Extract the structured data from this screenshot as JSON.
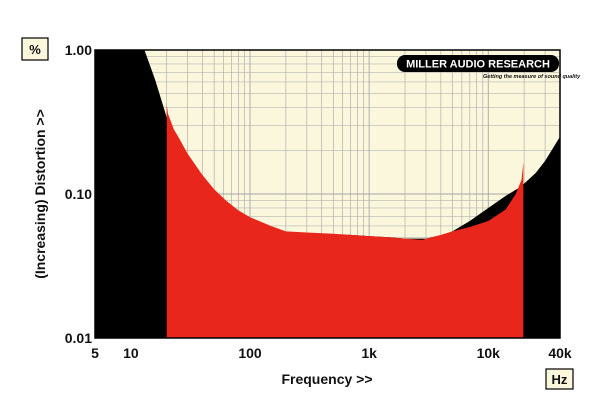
{
  "chart_data": {
    "type": "area",
    "title": "",
    "xlabel": "Frequency >>",
    "ylabel": "(Increasing) Distortion >>",
    "x_scale": "log",
    "y_scale": "log",
    "xlim": [
      5,
      40000
    ],
    "ylim": [
      0.01,
      1.0
    ],
    "x_ticks": [
      {
        "value": 5,
        "label": "5"
      },
      {
        "value": 10,
        "label": "10"
      },
      {
        "value": 100,
        "label": "100"
      },
      {
        "value": 1000,
        "label": "1k"
      },
      {
        "value": 10000,
        "label": "10k"
      },
      {
        "value": 40000,
        "label": "40k"
      }
    ],
    "y_ticks": [
      {
        "value": 1.0,
        "label": "1.00"
      },
      {
        "value": 0.1,
        "label": "0.10"
      },
      {
        "value": 0.01,
        "label": "0.01"
      }
    ],
    "y_unit": "%",
    "x_unit": "Hz",
    "grid": true,
    "colors": {
      "plot_background": "#fbf7dd",
      "grid": "#a6a6a6",
      "noise_floor_fill": "#000000",
      "distortion_fill": "#e8261b"
    },
    "series": [
      {
        "role": "noise-threshold",
        "x": [
          5,
          13,
          16,
          20,
          25,
          32,
          40,
          50,
          63,
          80,
          100,
          150,
          200,
          300,
          500,
          700,
          1000,
          1500,
          2000,
          3000,
          4000,
          5000,
          7000,
          10000,
          14000,
          18000,
          20000,
          25000,
          30000,
          40000
        ],
        "y": [
          1.0,
          1.0,
          0.62,
          0.34,
          0.23,
          0.165,
          0.125,
          0.1,
          0.085,
          0.074,
          0.067,
          0.058,
          0.054,
          0.053,
          0.052,
          0.052,
          0.051,
          0.05,
          0.049,
          0.049,
          0.051,
          0.055,
          0.065,
          0.08,
          0.097,
          0.11,
          0.118,
          0.14,
          0.17,
          0.25
        ]
      },
      {
        "role": "distortion",
        "x": [
          20,
          20.5,
          23,
          25,
          30,
          40,
          50,
          63,
          80,
          100,
          150,
          200,
          300,
          500,
          700,
          1000,
          1500,
          2000,
          2800,
          3000,
          4000,
          5000,
          7000,
          10000,
          14000,
          17000,
          19000,
          19700
        ],
        "y": [
          0.42,
          0.36,
          0.28,
          0.25,
          0.19,
          0.135,
          0.108,
          0.09,
          0.077,
          0.069,
          0.06,
          0.055,
          0.054,
          0.053,
          0.052,
          0.051,
          0.05,
          0.049,
          0.048,
          0.049,
          0.052,
          0.055,
          0.059,
          0.065,
          0.078,
          0.1,
          0.125,
          0.165
        ]
      }
    ]
  },
  "legend_tags": {
    "unit_y": "%",
    "unit_x": "Hz"
  },
  "logo": {
    "name": "MILLER AUDIO RESEARCH",
    "tagline": "Getting the measure of sound quality"
  }
}
